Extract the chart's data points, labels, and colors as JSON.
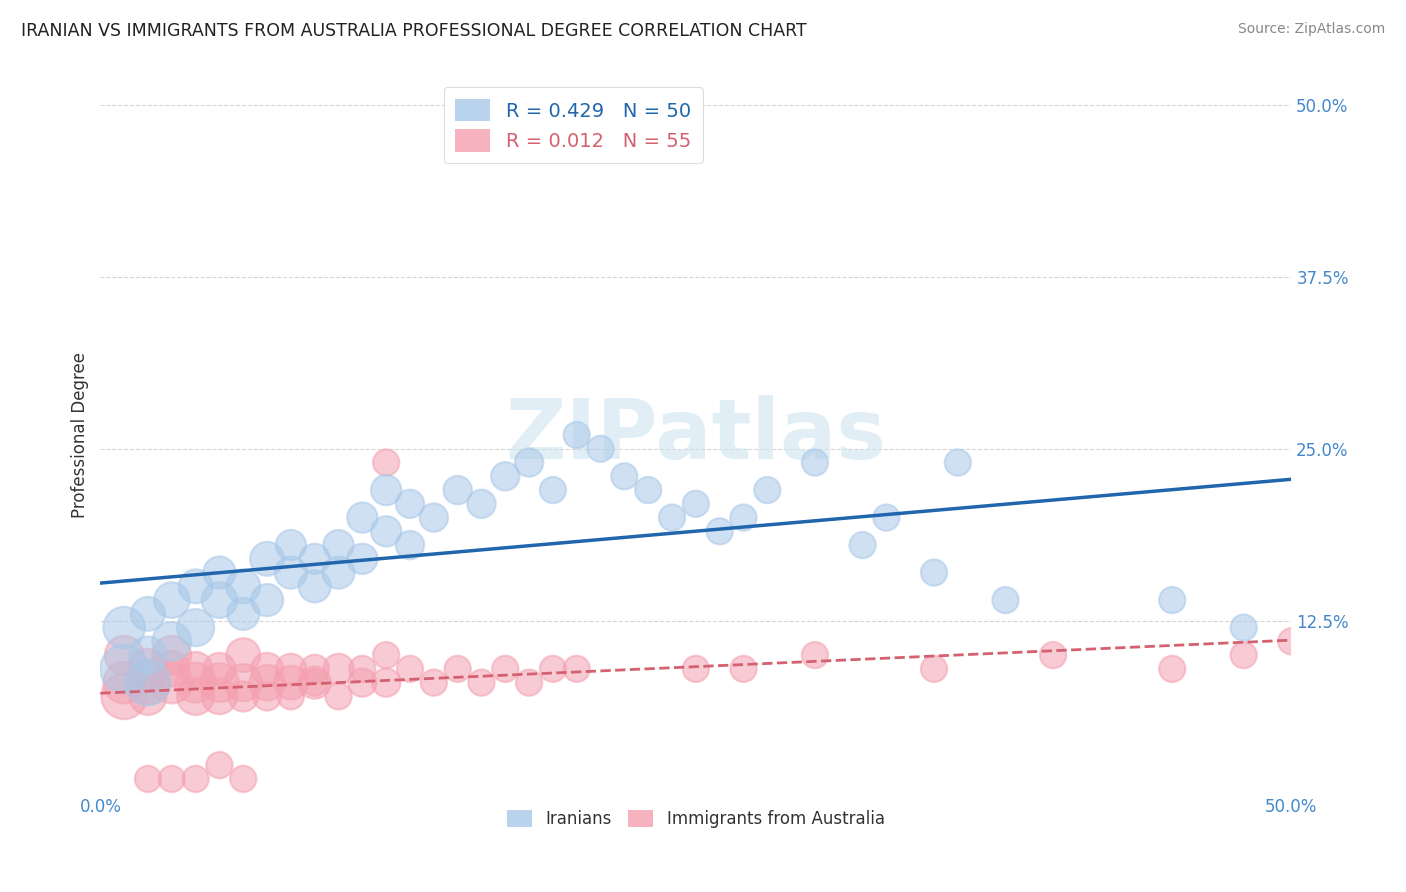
{
  "title": "IRANIAN VS IMMIGRANTS FROM AUSTRALIA PROFESSIONAL DEGREE CORRELATION CHART",
  "source": "Source: ZipAtlas.com",
  "ylabel": "Professional Degree",
  "xlim": [
    0.0,
    0.5
  ],
  "ylim": [
    0.0,
    0.52
  ],
  "iranians_color": "#a8c8e8",
  "australia_color": "#f4a0b0",
  "iranians_line_color": "#2166ac",
  "australia_line_color": "#d46070",
  "background_color": "#ffffff",
  "grid_color": "#cccccc",
  "watermark": "ZIPatlas",
  "iranians_R": 0.429,
  "australia_R": 0.012,
  "iranians_N": 50,
  "australia_N": 55,
  "iranians_x": [
    0.01,
    0.01,
    0.02,
    0.02,
    0.02,
    0.03,
    0.03,
    0.04,
    0.04,
    0.05,
    0.05,
    0.06,
    0.06,
    0.07,
    0.07,
    0.08,
    0.08,
    0.09,
    0.09,
    0.1,
    0.1,
    0.11,
    0.11,
    0.12,
    0.12,
    0.13,
    0.13,
    0.14,
    0.15,
    0.16,
    0.17,
    0.18,
    0.19,
    0.2,
    0.21,
    0.22,
    0.23,
    0.24,
    0.25,
    0.26,
    0.27,
    0.28,
    0.3,
    0.32,
    0.33,
    0.35,
    0.36,
    0.38,
    0.45,
    0.48
  ],
  "iranians_y": [
    0.09,
    0.12,
    0.1,
    0.13,
    0.08,
    0.11,
    0.14,
    0.12,
    0.15,
    0.14,
    0.16,
    0.15,
    0.13,
    0.17,
    0.14,
    0.16,
    0.18,
    0.15,
    0.17,
    0.16,
    0.18,
    0.17,
    0.2,
    0.19,
    0.22,
    0.18,
    0.21,
    0.2,
    0.22,
    0.21,
    0.23,
    0.24,
    0.22,
    0.26,
    0.25,
    0.23,
    0.22,
    0.2,
    0.21,
    0.19,
    0.2,
    0.22,
    0.24,
    0.18,
    0.2,
    0.16,
    0.24,
    0.14,
    0.14,
    0.12
  ],
  "iranians_size": [
    200,
    150,
    120,
    100,
    180,
    130,
    110,
    120,
    100,
    110,
    90,
    100,
    90,
    100,
    90,
    90,
    80,
    90,
    80,
    90,
    80,
    80,
    80,
    80,
    80,
    70,
    70,
    70,
    70,
    70,
    70,
    70,
    60,
    60,
    60,
    60,
    60,
    60,
    60,
    60,
    60,
    60,
    60,
    60,
    60,
    60,
    60,
    60,
    60,
    60
  ],
  "australia_x": [
    0.01,
    0.01,
    0.01,
    0.02,
    0.02,
    0.02,
    0.03,
    0.03,
    0.03,
    0.04,
    0.04,
    0.04,
    0.05,
    0.05,
    0.05,
    0.06,
    0.06,
    0.06,
    0.07,
    0.07,
    0.07,
    0.08,
    0.08,
    0.08,
    0.09,
    0.09,
    0.09,
    0.1,
    0.1,
    0.11,
    0.11,
    0.12,
    0.12,
    0.13,
    0.14,
    0.15,
    0.16,
    0.17,
    0.18,
    0.19,
    0.2,
    0.25,
    0.27,
    0.3,
    0.35,
    0.4,
    0.45,
    0.48,
    0.5,
    0.12,
    0.02,
    0.03,
    0.04,
    0.05,
    0.06
  ],
  "australia_y": [
    0.07,
    0.08,
    0.1,
    0.08,
    0.09,
    0.07,
    0.08,
    0.1,
    0.09,
    0.08,
    0.07,
    0.09,
    0.08,
    0.07,
    0.09,
    0.08,
    0.1,
    0.07,
    0.08,
    0.09,
    0.07,
    0.08,
    0.09,
    0.07,
    0.08,
    0.09,
    0.08,
    0.09,
    0.07,
    0.08,
    0.09,
    0.08,
    0.1,
    0.09,
    0.08,
    0.09,
    0.08,
    0.09,
    0.08,
    0.09,
    0.09,
    0.09,
    0.09,
    0.1,
    0.09,
    0.1,
    0.09,
    0.1,
    0.11,
    0.24,
    0.01,
    0.01,
    0.01,
    0.02,
    0.01
  ],
  "australia_size": [
    180,
    150,
    130,
    160,
    140,
    120,
    150,
    130,
    110,
    140,
    120,
    100,
    130,
    110,
    90,
    120,
    100,
    80,
    110,
    90,
    70,
    100,
    80,
    60,
    90,
    70,
    60,
    80,
    60,
    70,
    60,
    70,
    60,
    60,
    60,
    60,
    60,
    60,
    60,
    60,
    60,
    60,
    60,
    60,
    60,
    60,
    60,
    60,
    60,
    60,
    60,
    60,
    60,
    60,
    60
  ]
}
